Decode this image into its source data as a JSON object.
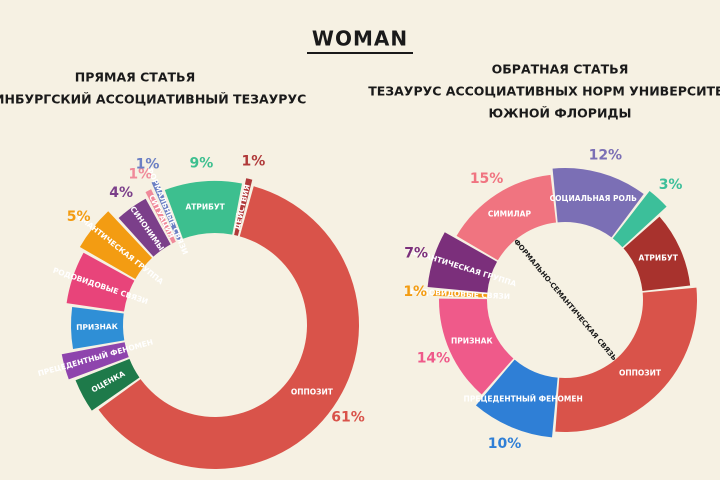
{
  "title": "WOMAN",
  "chart_data": [
    {
      "type": "donut",
      "title": "ПРЯМАЯ СТАТЬЯ",
      "subtitle": "ЭДИНБУРГСКИЙ АССОЦИАТИВНЫЙ ТЕЗАУРУС",
      "categories": [
        "ОППОЗИТ",
        "ОЦЕНКА",
        "ПРЕЦЕДЕНТНЫЙ ФЕНОМЕН",
        "ПРИЗНАК",
        "РОДОВИДОВЫЕ СВЯЗИ",
        "СЕМАНТИЧЕСКАЯ ГРУППА",
        "СИНОНИМЫ",
        "СИТУАЦИЯ",
        "ФОРМАЛЬНЫЕ СВЯЗИ",
        "АТРИБУТ",
        "ДЕЙСТВИЯ"
      ],
      "values": [
        61,
        4,
        3,
        5,
        6,
        5,
        4,
        1,
        1,
        9,
        1
      ],
      "value_labels": [
        "61%",
        null,
        null,
        null,
        null,
        "5%",
        "4%",
        "1%",
        "1%",
        "9%",
        "1%"
      ],
      "colors": [
        "#d9534a",
        "#1e7a4a",
        "#8e44ad",
        "#2f8fd6",
        "#e8447a",
        "#f39c12",
        "#7b3f8a",
        "#f08a9a",
        "#6b7fc4",
        "#3dbf8f",
        "#b03a3a"
      ]
    },
    {
      "type": "donut",
      "title": "ОБРАТНАЯ СТАТЬЯ",
      "subtitle": "ТЕЗАУРУС  АССОЦИАТИВНЫХ НОРМ УНИВЕРСИТЕТА",
      "subtitle2": "ЮЖНОЙ ФЛОРИДЫ",
      "annotation": "ФОРМАЛЬНО-СЕМАНТИЧЕСКАЯ СВЯЗЬ",
      "categories": [
        "СИМИЛАР",
        "СОЦИАЛЬНАЯ РОЛЬ",
        null,
        "АТРИБУТ",
        "ОППОЗИТ",
        "ПРЕЦЕДЕНТНЫЙ ФЕНОМЕН",
        "ПРИЗНАК",
        "РОДОВИДОВЫЕ СВЯЗИ",
        "СЕМАНТИЧЕСКАЯ ГРУППА"
      ],
      "values": [
        15,
        12,
        3,
        10,
        28,
        10,
        14,
        1,
        7
      ],
      "value_labels": [
        "15%",
        "12%",
        "3%",
        null,
        null,
        "10%",
        "14%",
        "1%",
        "7%"
      ],
      "colors": [
        "#f07480",
        "#7b6fb5",
        "#3cbf9a",
        "#a8322d",
        "#d9534a",
        "#2f7fd6",
        "#ef5a8a",
        "#f39c12",
        "#7b2f7b"
      ]
    }
  ]
}
